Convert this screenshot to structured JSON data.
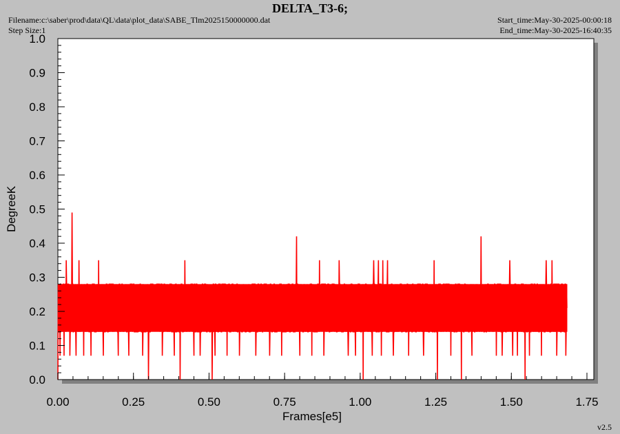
{
  "header": {
    "title": "DELTA_T3-6;",
    "filename_text": "Filename:c:\\saber\\prod\\data\\QL\\data\\plot_data\\SABE_Tlm2025150000000.dat",
    "step_size_text": "Step Size:1",
    "start_time_text": "Start_time:May-30-2025-00:00:18",
    "end_time_text": "End_time:May-30-2025-16:40:35"
  },
  "footer": {
    "version": "v2.5"
  },
  "colors": {
    "series": "#ff0000",
    "background": "#c0c0c0",
    "plot_area": "#ffffff",
    "shadow": "#808080"
  },
  "chart_data": {
    "type": "line",
    "title": "DELTA_T3-6;",
    "xlabel": "Frames[e5]",
    "ylabel": "DegreeK",
    "xlim": [
      0,
      1.75
    ],
    "ylim": [
      0,
      1.0
    ],
    "xticks": [
      "0.00",
      "0.25",
      "0.50",
      "0.75",
      "1.00",
      "1.25",
      "1.50",
      "1.75"
    ],
    "yticks": [
      "0.0",
      "0.1",
      "0.2",
      "0.3",
      "0.4",
      "0.5",
      "0.6",
      "0.7",
      "0.8",
      "0.9",
      "1.0"
    ],
    "grid": false,
    "legend": "none",
    "series": [
      {
        "x_range": [
          0,
          1.685
        ],
        "typical_band": [
          0.14,
          0.28
        ],
        "common_levels": [
          0.14,
          0.21,
          0.28
        ],
        "high_spikes": [
          {
            "x": 0.028,
            "y": 0.35
          },
          {
            "x": 0.047,
            "y": 0.49
          },
          {
            "x": 0.07,
            "y": 0.35
          },
          {
            "x": 0.135,
            "y": 0.35
          },
          {
            "x": 0.42,
            "y": 0.35
          },
          {
            "x": 0.79,
            "y": 0.42
          },
          {
            "x": 0.865,
            "y": 0.35
          },
          {
            "x": 0.93,
            "y": 0.35
          },
          {
            "x": 1.045,
            "y": 0.35
          },
          {
            "x": 1.06,
            "y": 0.35
          },
          {
            "x": 1.075,
            "y": 0.35
          },
          {
            "x": 1.09,
            "y": 0.35
          },
          {
            "x": 1.245,
            "y": 0.35
          },
          {
            "x": 1.4,
            "y": 0.42
          },
          {
            "x": 1.495,
            "y": 0.35
          },
          {
            "x": 1.615,
            "y": 0.35
          },
          {
            "x": 1.635,
            "y": 0.35
          }
        ],
        "low_spikes": [
          {
            "x": 0.0,
            "y": 0.0
          },
          {
            "x": 0.3,
            "y": 0.0
          },
          {
            "x": 0.405,
            "y": 0.0
          },
          {
            "x": 0.51,
            "y": 0.0
          },
          {
            "x": 1.01,
            "y": 0.0
          },
          {
            "x": 1.255,
            "y": 0.0
          },
          {
            "x": 1.335,
            "y": 0.0
          },
          {
            "x": 1.545,
            "y": 0.0
          }
        ],
        "dip_to_0_07": [
          0.007,
          0.02,
          0.04,
          0.06,
          0.085,
          0.11,
          0.15,
          0.2,
          0.235,
          0.28,
          0.345,
          0.385,
          0.45,
          0.47,
          0.52,
          0.56,
          0.6,
          0.655,
          0.7,
          0.74,
          0.8,
          0.84,
          0.88,
          0.96,
          0.985,
          1.04,
          1.07,
          1.11,
          1.16,
          1.21,
          1.3,
          1.37,
          1.45,
          1.47,
          1.505,
          1.52,
          1.56,
          1.6,
          1.65,
          1.68
        ]
      }
    ]
  }
}
